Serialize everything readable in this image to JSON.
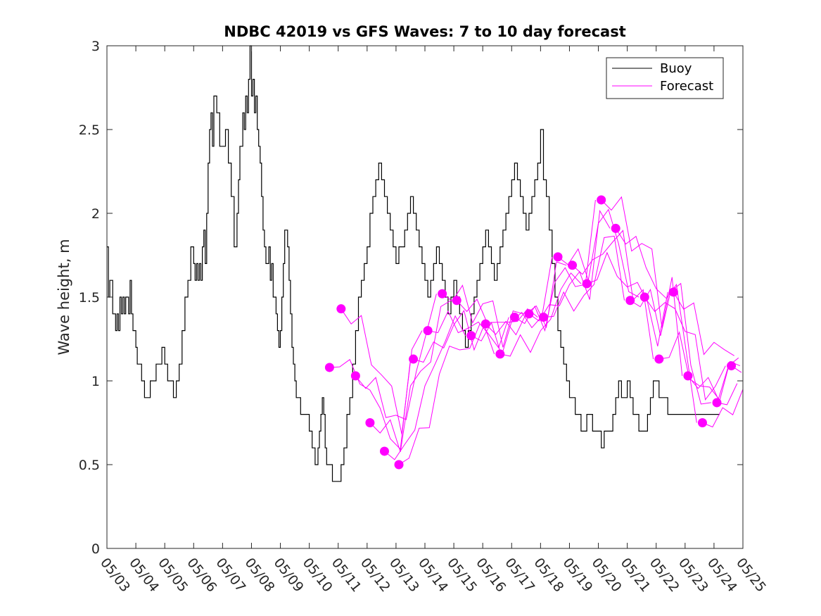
{
  "chart_data": {
    "type": "line",
    "title": "NDBC 42019 vs GFS Waves: 7 to 10 day forecast",
    "xlabel": "",
    "ylabel": "Wave height, m",
    "xlim": [
      "05/03",
      "05/25"
    ],
    "ylim": [
      0,
      3
    ],
    "x_tick_labels": [
      "05/03",
      "05/04",
      "05/05",
      "05/06",
      "05/07",
      "05/08",
      "05/09",
      "05/10",
      "05/11",
      "05/12",
      "05/13",
      "05/14",
      "05/15",
      "05/16",
      "05/17",
      "05/18",
      "05/19",
      "05/20",
      "05/21",
      "05/22",
      "05/23",
      "05/24",
      "05/25"
    ],
    "y_ticks": [
      0,
      0.5,
      1,
      1.5,
      2,
      2.5,
      3
    ],
    "y_tick_labels": [
      "0",
      "0.5",
      "1",
      "1.5",
      "2",
      "2.5",
      "3"
    ],
    "legend": {
      "position": "top-right",
      "entries": [
        "Buoy",
        "Forecast"
      ]
    },
    "colors": {
      "buoy": "#000000",
      "forecast": "#ff00ff"
    },
    "series": [
      {
        "name": "Buoy",
        "x_days_from_05_03": [
          0,
          0.05,
          0.1,
          0.15,
          0.2,
          0.25,
          0.3,
          0.35,
          0.4,
          0.45,
          0.5,
          0.55,
          0.6,
          0.65,
          0.7,
          0.75,
          0.8,
          0.85,
          0.9,
          0.95,
          1,
          1.05,
          1.1,
          1.15,
          1.2,
          1.3,
          1.4,
          1.5,
          1.6,
          1.7,
          1.8,
          1.9,
          2,
          2.1,
          2.2,
          2.3,
          2.4,
          2.5,
          2.6,
          2.7,
          2.8,
          2.9,
          3,
          3.05,
          3.1,
          3.15,
          3.2,
          3.25,
          3.3,
          3.35,
          3.4,
          3.45,
          3.5,
          3.55,
          3.6,
          3.65,
          3.7,
          3.8,
          3.9,
          4,
          4.1,
          4.2,
          4.3,
          4.4,
          4.5,
          4.55,
          4.6,
          4.65,
          4.7,
          4.75,
          4.8,
          4.85,
          4.9,
          4.95,
          5,
          5.05,
          5.1,
          5.15,
          5.2,
          5.25,
          5.3,
          5.35,
          5.4,
          5.45,
          5.5,
          5.55,
          5.6,
          5.65,
          5.7,
          5.75,
          5.8,
          5.85,
          5.9,
          5.95,
          6,
          6.05,
          6.1,
          6.15,
          6.2,
          6.25,
          6.3,
          6.35,
          6.4,
          6.45,
          6.5,
          6.55,
          6.6,
          6.7,
          6.8,
          6.9,
          7,
          7.1,
          7.2,
          7.3,
          7.35,
          7.4,
          7.45,
          7.5,
          7.55,
          7.6,
          7.7,
          7.8,
          7.9,
          8,
          8.1,
          8.2,
          8.3,
          8.4,
          8.5,
          8.6,
          8.7,
          8.8,
          8.9,
          9,
          9.1,
          9.2,
          9.3,
          9.4,
          9.5,
          9.6,
          9.7,
          9.8,
          9.9,
          10,
          10.1,
          10.2,
          10.3,
          10.4,
          10.5,
          10.6,
          10.7,
          10.8,
          10.9,
          11,
          11.1,
          11.2,
          11.3,
          11.4,
          11.5,
          11.6,
          11.7,
          11.8,
          11.9,
          12,
          12.1,
          12.2,
          12.3,
          12.4,
          12.5,
          12.6,
          12.7,
          12.8,
          12.9,
          13,
          13.1,
          13.2,
          13.3,
          13.4,
          13.5,
          13.6,
          13.7,
          13.8,
          13.9,
          14,
          14.1,
          14.2,
          14.3,
          14.4,
          14.5,
          14.6,
          14.7,
          14.8,
          14.9,
          15,
          15.1,
          15.2,
          15.3,
          15.4,
          15.5,
          15.6,
          15.7,
          15.8,
          15.9,
          16,
          16.1,
          16.2,
          16.3,
          16.4,
          16.5,
          16.6,
          16.7,
          16.8,
          16.9,
          17,
          17.1,
          17.2,
          17.3,
          17.4,
          17.5,
          17.6,
          17.7,
          17.8,
          17.9,
          18,
          18.1,
          18.2,
          18.3,
          18.4,
          18.5,
          18.6,
          18.7,
          18.8,
          18.9,
          19,
          19.1,
          19.2,
          19.3,
          19.4,
          19.5,
          19.6,
          19.7,
          19.8,
          19.9,
          20,
          20.1,
          20.2,
          20.3,
          20.4,
          20.5,
          20.6,
          20.7,
          20.8,
          20.9,
          21,
          21.1,
          21.2
        ],
        "y": [
          1.8,
          1.5,
          1.6,
          1.6,
          1.4,
          1.4,
          1.3,
          1.4,
          1.3,
          1.5,
          1.4,
          1.5,
          1.4,
          1.5,
          1.5,
          1.4,
          1.6,
          1.4,
          1.3,
          1.3,
          1.2,
          1.1,
          1.1,
          1.1,
          1.0,
          0.9,
          0.9,
          1.0,
          1.0,
          1.1,
          1.1,
          1.2,
          1.1,
          1.0,
          1.0,
          0.9,
          1.0,
          1.1,
          1.3,
          1.5,
          1.6,
          1.8,
          1.7,
          1.6,
          1.7,
          1.6,
          1.7,
          1.6,
          1.8,
          1.9,
          1.7,
          2.0,
          2.3,
          2.5,
          2.6,
          2.4,
          2.7,
          2.6,
          2.4,
          2.4,
          2.5,
          2.3,
          2.1,
          1.8,
          2.0,
          2.2,
          2.4,
          2.4,
          2.6,
          2.5,
          2.7,
          2.6,
          2.8,
          3.0,
          2.7,
          2.8,
          2.6,
          2.7,
          2.5,
          2.4,
          2.3,
          2.1,
          1.9,
          1.8,
          1.7,
          1.7,
          1.8,
          1.6,
          1.7,
          1.5,
          1.5,
          1.4,
          1.3,
          1.2,
          1.3,
          1.5,
          1.7,
          1.9,
          1.9,
          1.8,
          1.6,
          1.4,
          1.2,
          1.1,
          1.0,
          0.9,
          0.9,
          0.8,
          0.8,
          0.8,
          0.7,
          0.6,
          0.5,
          0.6,
          0.7,
          0.8,
          0.9,
          0.8,
          0.6,
          0.5,
          0.5,
          0.4,
          0.4,
          0.4,
          0.5,
          0.6,
          0.8,
          0.9,
          1.1,
          1.3,
          1.5,
          1.6,
          1.7,
          1.8,
          2.0,
          2.1,
          2.2,
          2.3,
          2.2,
          2.1,
          2.0,
          1.9,
          1.8,
          1.7,
          1.8,
          1.8,
          1.9,
          2.0,
          2.1,
          2.0,
          1.9,
          1.8,
          1.7,
          1.6,
          1.5,
          1.6,
          1.7,
          1.8,
          1.7,
          1.6,
          1.5,
          1.4,
          1.5,
          1.6,
          1.5,
          1.4,
          1.3,
          1.2,
          1.3,
          1.4,
          1.5,
          1.6,
          1.7,
          1.8,
          1.9,
          1.8,
          1.7,
          1.6,
          1.7,
          1.8,
          1.9,
          2.0,
          2.1,
          2.2,
          2.3,
          2.2,
          2.1,
          2.0,
          1.9,
          2.0,
          2.1,
          2.2,
          2.3,
          2.5,
          2.2,
          2.1,
          1.9,
          1.7,
          1.5,
          1.3,
          1.2,
          1.1,
          1.0,
          0.9,
          0.9,
          0.8,
          0.8,
          0.7,
          0.7,
          0.8,
          0.8,
          0.7,
          0.7,
          0.7,
          0.6,
          0.7,
          0.7,
          0.7,
          0.8,
          0.9,
          1.0,
          0.9,
          0.9,
          1.0,
          0.9,
          0.8,
          0.8,
          0.7,
          0.7,
          0.7,
          0.8,
          0.9,
          1.0,
          1.0,
          0.9,
          0.9,
          0.9,
          0.8,
          0.8,
          0.8,
          0.8,
          0.8,
          0.8,
          0.8,
          0.8,
          0.8,
          0.8,
          0.8,
          0.8,
          0.8,
          0.8,
          0.8,
          0.8,
          0.8,
          0.8,
          0.8,
          0.8
        ]
      },
      {
        "name": "Forecast",
        "x_days_from_05_03": [
          7.7,
          8.1,
          8.6,
          9.1,
          9.6,
          10.1,
          10.6,
          11.1,
          11.6,
          12.1,
          12.6,
          13.1,
          13.6,
          14.1,
          14.6,
          15.1,
          15.6,
          16.1,
          16.6,
          17.1,
          17.6,
          18.1,
          18.6,
          19.1,
          19.6,
          20.1,
          20.6,
          21.1,
          21.6
        ],
        "y": [
          1.08,
          1.43,
          1.03,
          0.75,
          0.58,
          0.5,
          1.13,
          1.3,
          1.52,
          1.48,
          1.27,
          1.34,
          1.16,
          1.38,
          1.4,
          1.38,
          1.74,
          1.69,
          1.58,
          2.08,
          1.91,
          1.48,
          1.5,
          1.13,
          1.53,
          1.03,
          0.75,
          0.87,
          1.09
        ]
      }
    ]
  }
}
